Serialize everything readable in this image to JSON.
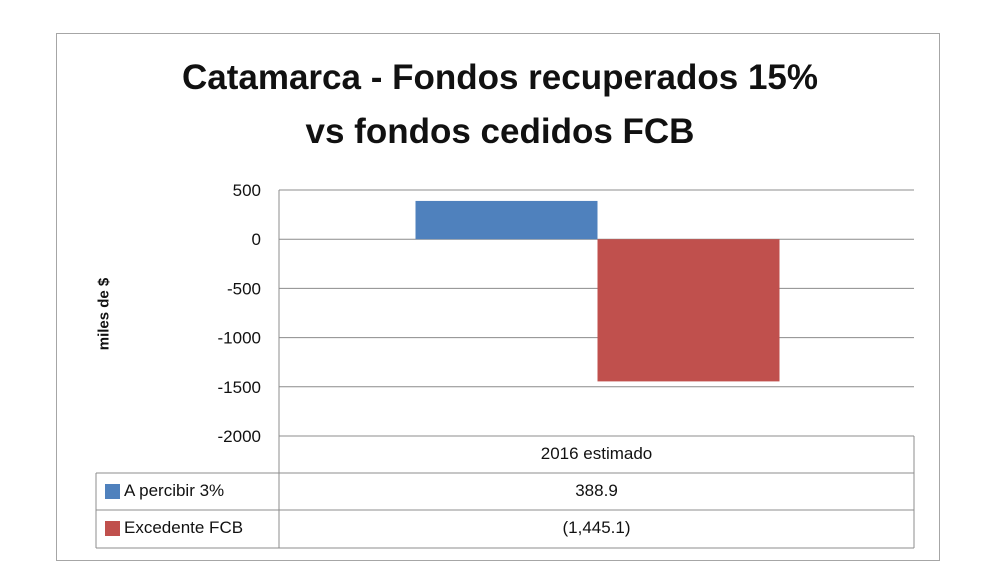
{
  "chart_data": {
    "type": "bar",
    "title_lines": [
      "Catamarca - Fondos recuperados 15%",
      "vs fondos cedidos FCB"
    ],
    "ylabel": "miles de $",
    "categories": [
      "2016 estimado"
    ],
    "ylim": [
      -2000,
      500
    ],
    "yticks": [
      500,
      0,
      -500,
      -1000,
      -1500,
      -2000
    ],
    "grid": true,
    "legend_placement": "data table",
    "series": [
      {
        "name": "A percibir 3%",
        "values": [
          388.9
        ],
        "color": "#4f81bd",
        "label": "388.9"
      },
      {
        "name": "Excedente FCB",
        "values": [
          -1445.1
        ],
        "color": "#c0504d",
        "label": "(1,445.1)"
      }
    ]
  }
}
